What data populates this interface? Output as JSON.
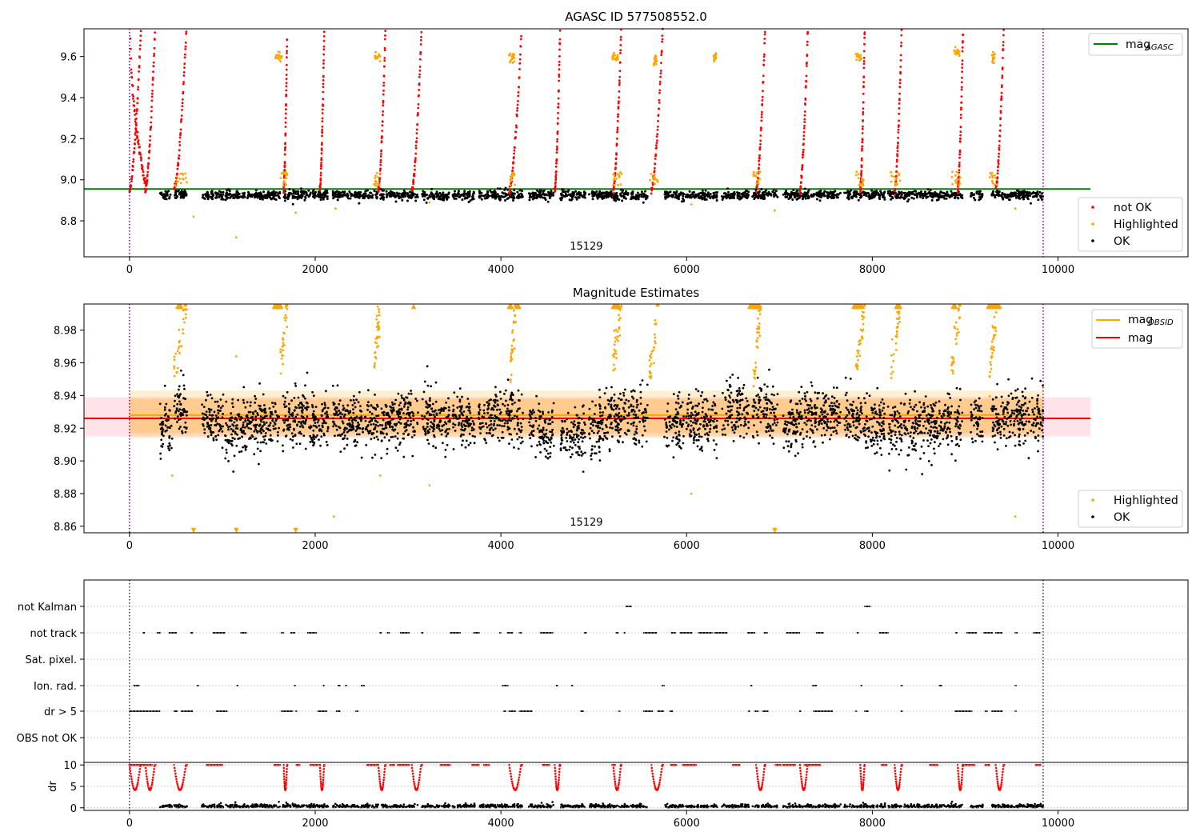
{
  "figure": {
    "top_title": "AGASC ID 577508552.0",
    "mid_title": "Magnitude Estimates"
  },
  "chart_data": [
    {
      "type": "scatter",
      "title": "AGASC ID 577508552.0",
      "xlabel": "",
      "ylabel": "",
      "xlim": [
        -490,
        11400
      ],
      "ylim": [
        8.625,
        9.735
      ],
      "xticks": [
        0,
        2000,
        4000,
        6000,
        8000,
        10000
      ],
      "yticks": [
        8.8,
        9.0,
        9.2,
        9.4,
        9.6
      ],
      "yticklabels": [
        "8.8",
        "9.0",
        "9.2",
        "9.4",
        "9.6"
      ],
      "vlines": [
        0,
        9840
      ],
      "lines": [
        {
          "name": "mag_AGASC",
          "label": "mag",
          "sub": "AGASC",
          "color": "#008000",
          "y": 8.955,
          "x": [
            -490,
            10350
          ]
        }
      ],
      "legend_lines_position": "top-right",
      "legend_points_position": "lower-right",
      "series": [
        {
          "name": "not OK",
          "color": "#ff0000"
        },
        {
          "name": "Highlighted",
          "color": "#ffa500"
        },
        {
          "name": "OK",
          "color": "#000000"
        }
      ],
      "annotation": {
        "text": "15129",
        "x": 4920
      }
    },
    {
      "type": "scatter",
      "title": "Magnitude Estimates",
      "xlabel": "",
      "ylabel": "",
      "xlim": [
        -490,
        11400
      ],
      "ylim": [
        8.856,
        8.996
      ],
      "xticks": [
        0,
        2000,
        4000,
        6000,
        8000,
        10000
      ],
      "yticks": [
        8.86,
        8.88,
        8.9,
        8.92,
        8.94,
        8.96,
        8.98
      ],
      "yticklabels": [
        "8.86",
        "8.88",
        "8.90",
        "8.92",
        "8.94",
        "8.96",
        "8.98"
      ],
      "vlines": [
        0,
        9840
      ],
      "bands": [
        {
          "color": "#ffc0cb",
          "y0": 8.915,
          "y1": 8.939,
          "x": [
            -490,
            10350
          ],
          "opacity": 0.45
        },
        {
          "color": "#ffa500",
          "y0": 8.914,
          "y1": 8.943,
          "x": [
            0,
            9840
          ],
          "opacity": 0.18
        },
        {
          "color": "#ffa500",
          "y0": 8.917,
          "y1": 8.938,
          "x": [
            0,
            9840
          ],
          "opacity": 0.25
        }
      ],
      "lines": [
        {
          "name": "mag_OBSID",
          "label": "mag",
          "sub": "OBSID",
          "color": "#ffa500",
          "y": 8.928,
          "x": [
            0,
            9840
          ]
        },
        {
          "name": "mag",
          "label": "mag",
          "sub": "",
          "color": "#ff0000",
          "y": 8.926,
          "x": [
            -490,
            10350
          ]
        }
      ],
      "legend_lines_position": "top-right",
      "legend_points_position": "lower-right",
      "series": [
        {
          "name": "Highlighted",
          "color": "#ffa500"
        },
        {
          "name": "OK",
          "color": "#000000"
        }
      ],
      "annotation": {
        "text": "15129",
        "x": 4920
      }
    },
    {
      "type": "scatter",
      "title": "",
      "xlim": [
        -490,
        11400
      ],
      "xticks": [
        0,
        2000,
        4000,
        6000,
        8000,
        10000
      ],
      "flag_rows": [
        "not Kalman",
        "not track",
        "Sat. pixel.",
        "Ion. rad.",
        "dr > 5",
        "OBS not OK"
      ],
      "vlines": [
        0,
        9840
      ]
    },
    {
      "type": "scatter",
      "title": "",
      "xlabel": "",
      "ylabel": "dr",
      "xlim": [
        -490,
        11400
      ],
      "ylim": [
        -0.6,
        10.6
      ],
      "xticks": [
        0,
        2000,
        4000,
        6000,
        8000,
        10000
      ],
      "yticks": [
        0,
        5,
        10
      ],
      "yticklabels": [
        "0",
        "5",
        "10"
      ],
      "vlines": [
        0,
        9840
      ]
    }
  ]
}
